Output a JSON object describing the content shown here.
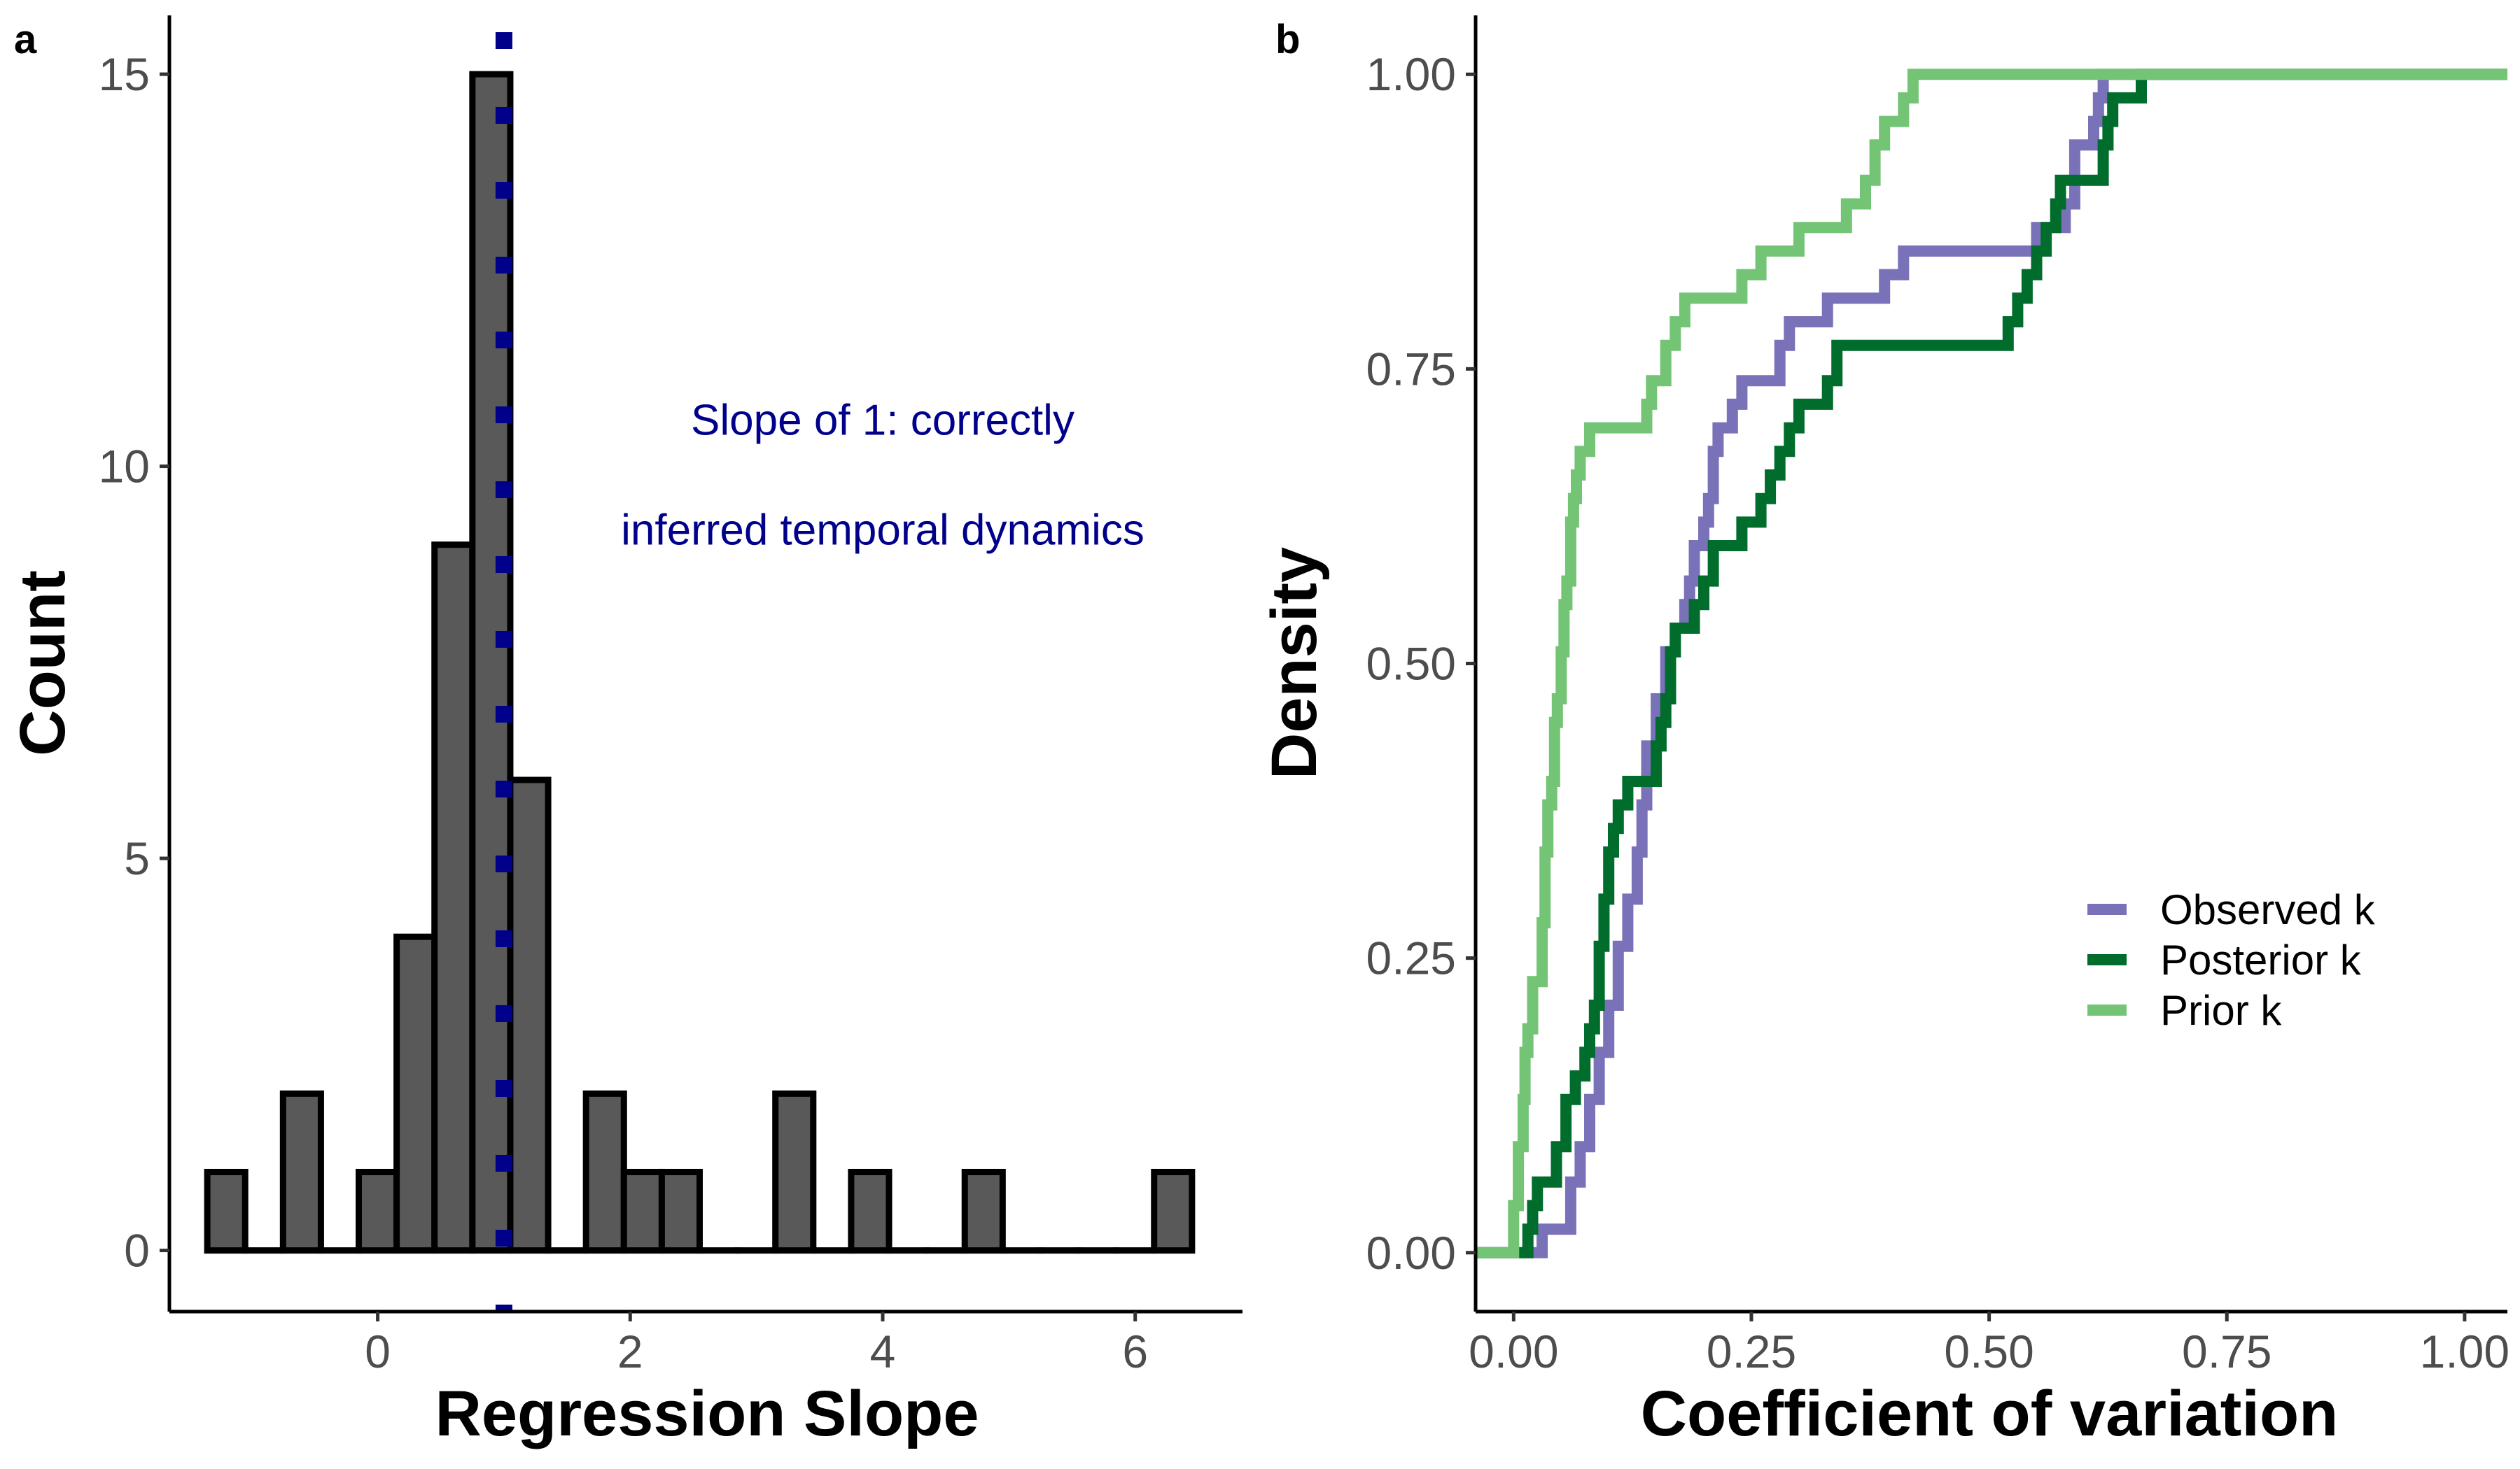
{
  "chart_data": [
    {
      "panel": "a",
      "type": "histogram",
      "xlabel": "Regression Slope",
      "ylabel": "Count",
      "xticks": [
        0,
        2,
        4,
        6
      ],
      "yticks": [
        0,
        5,
        10,
        15
      ],
      "xlim": [
        -1.65,
        6.85
      ],
      "ylim": [
        -0.78,
        15.75
      ],
      "bin_width": 0.3,
      "bins": [
        {
          "x_start": -1.35,
          "x_end": -1.05,
          "count": 1
        },
        {
          "x_start": -1.05,
          "x_end": -0.75,
          "count": 0
        },
        {
          "x_start": -0.75,
          "x_end": -0.45,
          "count": 2
        },
        {
          "x_start": -0.45,
          "x_end": -0.15,
          "count": 0
        },
        {
          "x_start": -0.15,
          "x_end": 0.15,
          "count": 1
        },
        {
          "x_start": 0.15,
          "x_end": 0.45,
          "count": 4
        },
        {
          "x_start": 0.45,
          "x_end": 0.75,
          "count": 9
        },
        {
          "x_start": 0.75,
          "x_end": 1.05,
          "count": 15
        },
        {
          "x_start": 1.05,
          "x_end": 1.35,
          "count": 6
        },
        {
          "x_start": 1.35,
          "x_end": 1.65,
          "count": 0
        },
        {
          "x_start": 1.65,
          "x_end": 1.95,
          "count": 2
        },
        {
          "x_start": 1.95,
          "x_end": 2.25,
          "count": 1
        },
        {
          "x_start": 2.25,
          "x_end": 2.55,
          "count": 1
        },
        {
          "x_start": 2.55,
          "x_end": 2.85,
          "count": 0
        },
        {
          "x_start": 2.85,
          "x_end": 3.15,
          "count": 0
        },
        {
          "x_start": 3.15,
          "x_end": 3.45,
          "count": 2
        },
        {
          "x_start": 3.45,
          "x_end": 3.75,
          "count": 0
        },
        {
          "x_start": 3.75,
          "x_end": 4.05,
          "count": 1
        },
        {
          "x_start": 4.05,
          "x_end": 4.35,
          "count": 0
        },
        {
          "x_start": 4.35,
          "x_end": 4.65,
          "count": 0
        },
        {
          "x_start": 4.65,
          "x_end": 4.95,
          "count": 1
        },
        {
          "x_start": 4.95,
          "x_end": 5.25,
          "count": 0
        },
        {
          "x_start": 5.25,
          "x_end": 5.55,
          "count": 0
        },
        {
          "x_start": 5.55,
          "x_end": 5.85,
          "count": 0
        },
        {
          "x_start": 5.85,
          "x_end": 6.15,
          "count": 0
        },
        {
          "x_start": 6.15,
          "x_end": 6.45,
          "count": 1
        }
      ],
      "bar_fill": "#595959",
      "bar_stroke": "#000000",
      "reference_line": {
        "x": 1,
        "style": "dotted",
        "color": "#00008b"
      },
      "annotation": {
        "lines": [
          "Slope of 1: correctly",
          "inferred temporal dynamics"
        ],
        "x": 4.0,
        "y_top": 10.4,
        "y_bottom": 9.0,
        "color": "#00008b"
      }
    },
    {
      "panel": "b",
      "type": "line",
      "subtype": "ecdf-step",
      "xlabel": "Coefficient of variation",
      "ylabel": "Density",
      "xticks": [
        "0.00",
        "0.25",
        "0.50",
        "0.75",
        "1.00"
      ],
      "yticks": [
        "0.00",
        "0.25",
        "0.50",
        "0.75",
        "1.00"
      ],
      "xlim": [
        -0.04,
        1.045
      ],
      "ylim": [
        -0.05,
        1.05
      ],
      "legend_position": "lower-right",
      "series": [
        {
          "name": "Observed k",
          "color": "#7a72b9",
          "points": [
            [
              -0.04,
              0.0
            ],
            [
              0.03,
              0.0
            ],
            [
              0.03,
              0.02
            ],
            [
              0.06,
              0.02
            ],
            [
              0.06,
              0.06
            ],
            [
              0.07,
              0.06
            ],
            [
              0.07,
              0.09
            ],
            [
              0.08,
              0.09
            ],
            [
              0.08,
              0.13
            ],
            [
              0.09,
              0.13
            ],
            [
              0.09,
              0.17
            ],
            [
              0.1,
              0.17
            ],
            [
              0.1,
              0.21
            ],
            [
              0.11,
              0.21
            ],
            [
              0.11,
              0.26
            ],
            [
              0.12,
              0.26
            ],
            [
              0.12,
              0.3
            ],
            [
              0.13,
              0.3
            ],
            [
              0.13,
              0.34
            ],
            [
              0.135,
              0.34
            ],
            [
              0.135,
              0.38
            ],
            [
              0.14,
              0.38
            ],
            [
              0.14,
              0.43
            ],
            [
              0.15,
              0.43
            ],
            [
              0.15,
              0.47
            ],
            [
              0.16,
              0.47
            ],
            [
              0.16,
              0.51
            ],
            [
              0.17,
              0.51
            ],
            [
              0.17,
              0.53
            ],
            [
              0.18,
              0.53
            ],
            [
              0.18,
              0.55
            ],
            [
              0.185,
              0.55
            ],
            [
              0.185,
              0.57
            ],
            [
              0.19,
              0.57
            ],
            [
              0.19,
              0.6
            ],
            [
              0.2,
              0.6
            ],
            [
              0.2,
              0.62
            ],
            [
              0.205,
              0.62
            ],
            [
              0.205,
              0.64
            ],
            [
              0.21,
              0.64
            ],
            [
              0.21,
              0.68
            ],
            [
              0.215,
              0.68
            ],
            [
              0.215,
              0.7
            ],
            [
              0.23,
              0.7
            ],
            [
              0.23,
              0.72
            ],
            [
              0.24,
              0.72
            ],
            [
              0.24,
              0.74
            ],
            [
              0.28,
              0.74
            ],
            [
              0.28,
              0.77
            ],
            [
              0.29,
              0.77
            ],
            [
              0.29,
              0.79
            ],
            [
              0.33,
              0.79
            ],
            [
              0.33,
              0.81
            ],
            [
              0.39,
              0.81
            ],
            [
              0.39,
              0.83
            ],
            [
              0.41,
              0.83
            ],
            [
              0.41,
              0.85
            ],
            [
              0.55,
              0.85
            ],
            [
              0.55,
              0.87
            ],
            [
              0.58,
              0.87
            ],
            [
              0.58,
              0.89
            ],
            [
              0.59,
              0.89
            ],
            [
              0.59,
              0.94
            ],
            [
              0.61,
              0.94
            ],
            [
              0.61,
              0.96
            ],
            [
              0.615,
              0.96
            ],
            [
              0.615,
              0.98
            ],
            [
              0.62,
              0.98
            ],
            [
              0.62,
              1.0
            ],
            [
              1.045,
              1.0
            ]
          ]
        },
        {
          "name": "Posterior k",
          "color": "#006d2c",
          "points": [
            [
              -0.04,
              0.0
            ],
            [
              0.015,
              0.0
            ],
            [
              0.015,
              0.02
            ],
            [
              0.02,
              0.02
            ],
            [
              0.02,
              0.04
            ],
            [
              0.025,
              0.04
            ],
            [
              0.025,
              0.06
            ],
            [
              0.045,
              0.06
            ],
            [
              0.045,
              0.09
            ],
            [
              0.055,
              0.09
            ],
            [
              0.055,
              0.13
            ],
            [
              0.065,
              0.13
            ],
            [
              0.065,
              0.15
            ],
            [
              0.075,
              0.15
            ],
            [
              0.075,
              0.17
            ],
            [
              0.08,
              0.17
            ],
            [
              0.08,
              0.19
            ],
            [
              0.085,
              0.19
            ],
            [
              0.085,
              0.21
            ],
            [
              0.09,
              0.21
            ],
            [
              0.09,
              0.26
            ],
            [
              0.095,
              0.26
            ],
            [
              0.095,
              0.3
            ],
            [
              0.1,
              0.3
            ],
            [
              0.1,
              0.34
            ],
            [
              0.105,
              0.34
            ],
            [
              0.105,
              0.36
            ],
            [
              0.11,
              0.36
            ],
            [
              0.11,
              0.38
            ],
            [
              0.12,
              0.38
            ],
            [
              0.12,
              0.4
            ],
            [
              0.15,
              0.4
            ],
            [
              0.15,
              0.43
            ],
            [
              0.155,
              0.43
            ],
            [
              0.155,
              0.45
            ],
            [
              0.16,
              0.45
            ],
            [
              0.16,
              0.47
            ],
            [
              0.165,
              0.47
            ],
            [
              0.165,
              0.51
            ],
            [
              0.17,
              0.51
            ],
            [
              0.17,
              0.53
            ],
            [
              0.19,
              0.53
            ],
            [
              0.19,
              0.55
            ],
            [
              0.2,
              0.55
            ],
            [
              0.2,
              0.57
            ],
            [
              0.21,
              0.57
            ],
            [
              0.21,
              0.6
            ],
            [
              0.24,
              0.6
            ],
            [
              0.24,
              0.62
            ],
            [
              0.26,
              0.62
            ],
            [
              0.26,
              0.64
            ],
            [
              0.27,
              0.64
            ],
            [
              0.27,
              0.66
            ],
            [
              0.28,
              0.66
            ],
            [
              0.28,
              0.68
            ],
            [
              0.29,
              0.68
            ],
            [
              0.29,
              0.7
            ],
            [
              0.3,
              0.7
            ],
            [
              0.3,
              0.72
            ],
            [
              0.33,
              0.72
            ],
            [
              0.33,
              0.74
            ],
            [
              0.34,
              0.74
            ],
            [
              0.34,
              0.77
            ],
            [
              0.52,
              0.77
            ],
            [
              0.52,
              0.79
            ],
            [
              0.53,
              0.79
            ],
            [
              0.53,
              0.81
            ],
            [
              0.54,
              0.81
            ],
            [
              0.54,
              0.83
            ],
            [
              0.55,
              0.83
            ],
            [
              0.55,
              0.85
            ],
            [
              0.56,
              0.85
            ],
            [
              0.56,
              0.87
            ],
            [
              0.57,
              0.87
            ],
            [
              0.57,
              0.89
            ],
            [
              0.575,
              0.89
            ],
            [
              0.575,
              0.91
            ],
            [
              0.62,
              0.91
            ],
            [
              0.62,
              0.94
            ],
            [
              0.625,
              0.94
            ],
            [
              0.625,
              0.96
            ],
            [
              0.63,
              0.96
            ],
            [
              0.63,
              0.98
            ],
            [
              0.66,
              0.98
            ],
            [
              0.66,
              1.0
            ],
            [
              1.045,
              1.0
            ]
          ]
        },
        {
          "name": "Prior k",
          "color": "#74c476",
          "points": [
            [
              -0.04,
              0.0
            ],
            [
              0.0,
              0.0
            ],
            [
              0.0,
              0.04
            ],
            [
              0.005,
              0.04
            ],
            [
              0.005,
              0.09
            ],
            [
              0.01,
              0.09
            ],
            [
              0.01,
              0.13
            ],
            [
              0.012,
              0.13
            ],
            [
              0.012,
              0.17
            ],
            [
              0.015,
              0.17
            ],
            [
              0.015,
              0.19
            ],
            [
              0.02,
              0.19
            ],
            [
              0.02,
              0.23
            ],
            [
              0.03,
              0.23
            ],
            [
              0.03,
              0.28
            ],
            [
              0.033,
              0.28
            ],
            [
              0.033,
              0.34
            ],
            [
              0.036,
              0.34
            ],
            [
              0.036,
              0.38
            ],
            [
              0.04,
              0.38
            ],
            [
              0.04,
              0.4
            ],
            [
              0.043,
              0.4
            ],
            [
              0.043,
              0.45
            ],
            [
              0.046,
              0.45
            ],
            [
              0.046,
              0.47
            ],
            [
              0.05,
              0.47
            ],
            [
              0.05,
              0.51
            ],
            [
              0.053,
              0.51
            ],
            [
              0.053,
              0.55
            ],
            [
              0.056,
              0.55
            ],
            [
              0.056,
              0.57
            ],
            [
              0.06,
              0.57
            ],
            [
              0.06,
              0.62
            ],
            [
              0.063,
              0.62
            ],
            [
              0.063,
              0.64
            ],
            [
              0.066,
              0.64
            ],
            [
              0.066,
              0.66
            ],
            [
              0.07,
              0.66
            ],
            [
              0.07,
              0.68
            ],
            [
              0.08,
              0.68
            ],
            [
              0.08,
              0.7
            ],
            [
              0.14,
              0.7
            ],
            [
              0.14,
              0.72
            ],
            [
              0.145,
              0.72
            ],
            [
              0.145,
              0.74
            ],
            [
              0.16,
              0.74
            ],
            [
              0.16,
              0.77
            ],
            [
              0.17,
              0.77
            ],
            [
              0.17,
              0.79
            ],
            [
              0.18,
              0.79
            ],
            [
              0.18,
              0.81
            ],
            [
              0.24,
              0.81
            ],
            [
              0.24,
              0.83
            ],
            [
              0.26,
              0.83
            ],
            [
              0.26,
              0.85
            ],
            [
              0.3,
              0.85
            ],
            [
              0.3,
              0.87
            ],
            [
              0.35,
              0.87
            ],
            [
              0.35,
              0.89
            ],
            [
              0.37,
              0.89
            ],
            [
              0.37,
              0.91
            ],
            [
              0.38,
              0.91
            ],
            [
              0.38,
              0.94
            ],
            [
              0.39,
              0.94
            ],
            [
              0.39,
              0.96
            ],
            [
              0.41,
              0.96
            ],
            [
              0.41,
              0.98
            ],
            [
              0.42,
              0.98
            ],
            [
              0.42,
              1.0
            ],
            [
              1.045,
              1.0
            ]
          ]
        }
      ]
    }
  ],
  "panels": {
    "a": {
      "letter": "a"
    },
    "b": {
      "letter": "b"
    }
  }
}
